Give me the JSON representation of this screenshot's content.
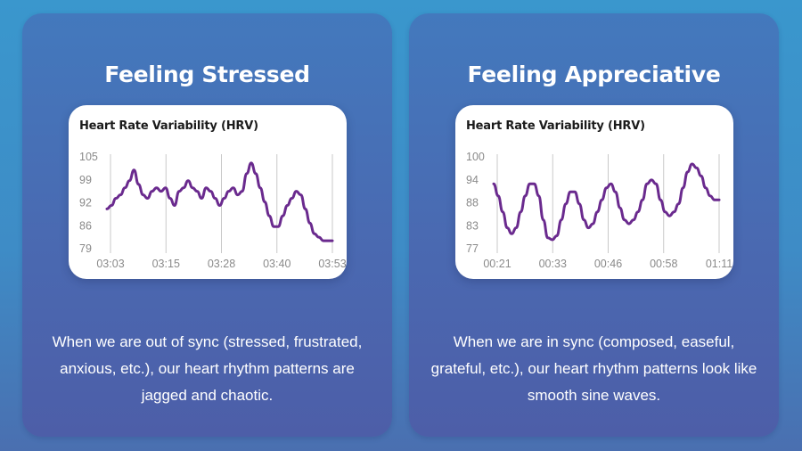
{
  "panels": [
    {
      "title": "Feeling Stressed",
      "caption": "When we are out of sync (stressed, frustrated, anxious, etc.), our heart rhythm patterns are jagged and chaotic."
    },
    {
      "title": "Feeling Appreciative",
      "caption": "When we are in sync (composed, easeful, grateful, etc.), our heart rhythm patterns look like smooth sine waves."
    }
  ],
  "colors": {
    "line": "#6a2a8e",
    "gridline": "#c8c8c8",
    "tick_text": "#8a8a8a"
  },
  "chart_data": [
    {
      "type": "line",
      "title": "Heart Rate Variability (HRV)",
      "xlabel": "",
      "ylabel": "",
      "grid": "vertical",
      "ylim": [
        79,
        105
      ],
      "yticks": [
        "105",
        "99",
        "92",
        "86",
        "79"
      ],
      "xticks": [
        "03:03",
        "03:15",
        "03:28",
        "03:40",
        "03:53"
      ],
      "x_seconds_range": [
        183,
        233
      ],
      "series": [
        {
          "x": [
            183,
            184,
            185,
            186,
            187,
            188,
            189,
            190,
            191,
            192,
            193,
            194,
            195,
            196,
            197,
            198,
            199,
            200,
            201,
            202,
            203,
            204,
            205,
            206,
            207,
            208,
            209,
            210,
            211,
            212,
            213,
            214,
            215,
            216,
            217,
            218,
            219,
            220,
            221,
            222,
            223,
            224,
            225,
            226,
            227,
            228,
            229,
            230,
            231,
            232,
            233
          ],
          "y": [
            90,
            91,
            93,
            94,
            96,
            98,
            101,
            97,
            94,
            93,
            95,
            96,
            95,
            96,
            93,
            91,
            95,
            96,
            98,
            96,
            95,
            93,
            96,
            95,
            93,
            91,
            93,
            95,
            96,
            94,
            95,
            100,
            103,
            100,
            96,
            92,
            88,
            85,
            85,
            88,
            91,
            93,
            95,
            94,
            90,
            86,
            83,
            82,
            81,
            81,
            81
          ]
        }
      ]
    },
    {
      "type": "line",
      "title": "Heart Rate Variability (HRV)",
      "xlabel": "",
      "ylabel": "",
      "grid": "vertical",
      "ylim": [
        77,
        100
      ],
      "yticks": [
        "100",
        "94",
        "88",
        "83",
        "77"
      ],
      "xticks": [
        "00:21",
        "00:33",
        "00:46",
        "00:58",
        "01:11"
      ],
      "x_seconds_range": [
        21,
        71
      ],
      "series": [
        {
          "x": [
            21,
            22,
            23,
            24,
            25,
            26,
            27,
            28,
            29,
            30,
            31,
            32,
            33,
            34,
            35,
            36,
            37,
            38,
            39,
            40,
            41,
            42,
            43,
            44,
            45,
            46,
            47,
            48,
            49,
            50,
            51,
            52,
            53,
            54,
            55,
            56,
            57,
            58,
            59,
            60,
            61,
            62,
            63,
            64,
            65,
            66,
            67,
            68,
            69,
            70,
            71
          ],
          "y": [
            93,
            90,
            86,
            82,
            80.5,
            82,
            86,
            90,
            93,
            93,
            90,
            84,
            79.5,
            79,
            80,
            84,
            88,
            91,
            91,
            88,
            84,
            82,
            83,
            86,
            89,
            92,
            93,
            91,
            87,
            84,
            83,
            84,
            86,
            89,
            93,
            94,
            93,
            89,
            86,
            85,
            86,
            88,
            92,
            96,
            98,
            97,
            95,
            92,
            90,
            89,
            89
          ]
        }
      ]
    }
  ]
}
